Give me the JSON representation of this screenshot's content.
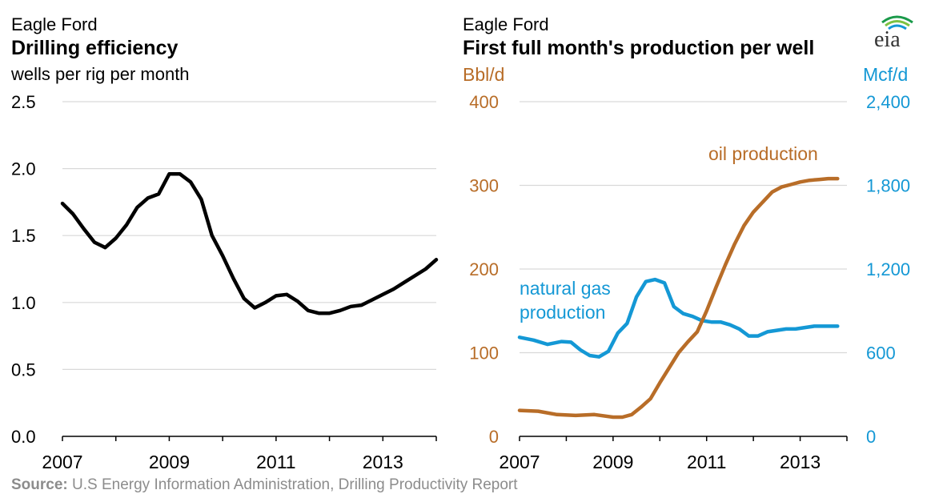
{
  "colors": {
    "black": "#000000",
    "oil": "#b86d28",
    "gas": "#1498d5",
    "grid": "#d9d9d9",
    "source": "#8c8c8c"
  },
  "left": {
    "subtitle": "Eagle Ford",
    "title": "Drilling efficiency",
    "unit": "wells per rig per month"
  },
  "right": {
    "subtitle": "Eagle Ford",
    "title": "First full month's production per well",
    "left_unit": "Bbl/d",
    "right_unit": "Mcf/d",
    "oil_label": "oil production",
    "gas_label_1": "natural gas",
    "gas_label_2": "production"
  },
  "logo": "eia",
  "source": {
    "label": "Source:",
    "text": "U.S Energy Information Administration, Drilling Productivity Report"
  },
  "chart_data": [
    {
      "type": "line",
      "title": "Drilling efficiency",
      "ylabel": "wells per rig per month",
      "ylim": [
        0,
        2.5
      ],
      "yticks": [
        "0.0",
        "0.5",
        "1.0",
        "1.5",
        "2.0",
        "2.5"
      ],
      "xlim": [
        2007,
        2014.0
      ],
      "xticks": [
        "2007",
        "2009",
        "2011",
        "2013"
      ],
      "grid": true,
      "series": [
        {
          "x": [
            2007.0,
            2007.2,
            2007.4,
            2007.6,
            2007.8,
            2008.0,
            2008.2,
            2008.4,
            2008.6,
            2008.8,
            2009.0,
            2009.2,
            2009.4,
            2009.6,
            2009.8,
            2010.0,
            2010.2,
            2010.4,
            2010.6,
            2010.8,
            2011.0,
            2011.2,
            2011.4,
            2011.6,
            2011.8,
            2012.0,
            2012.2,
            2012.4,
            2012.6,
            2012.8,
            2013.0,
            2013.2,
            2013.4,
            2013.6,
            2013.8,
            2014.0
          ],
          "values": [
            1.74,
            1.66,
            1.55,
            1.45,
            1.41,
            1.48,
            1.58,
            1.71,
            1.78,
            1.81,
            1.96,
            1.96,
            1.9,
            1.77,
            1.5,
            1.35,
            1.18,
            1.03,
            0.96,
            1.0,
            1.05,
            1.06,
            1.01,
            0.94,
            0.92,
            0.92,
            0.94,
            0.97,
            0.98,
            1.02,
            1.06,
            1.1,
            1.15,
            1.2,
            1.25,
            1.32
          ]
        }
      ]
    },
    {
      "type": "line",
      "title": "First full month's production per well",
      "ylim": [
        0,
        400
      ],
      "yticks": [
        "0",
        "100",
        "200",
        "300",
        "400"
      ],
      "y2lim": [
        0,
        2400
      ],
      "y2ticks": [
        "0",
        "600",
        "1,200",
        "1,800",
        "2,400"
      ],
      "xlim": [
        2007,
        2014.0
      ],
      "xticks": [
        "2007",
        "2009",
        "2011",
        "2013"
      ],
      "grid": true,
      "series": [
        {
          "name": "oil production",
          "axis": "left",
          "x": [
            2007.0,
            2007.4,
            2007.8,
            2008.2,
            2008.6,
            2009.0,
            2009.2,
            2009.4,
            2009.6,
            2009.8,
            2010.0,
            2010.2,
            2010.4,
            2010.6,
            2010.8,
            2011.0,
            2011.2,
            2011.4,
            2011.6,
            2011.8,
            2012.0,
            2012.2,
            2012.4,
            2012.6,
            2012.8,
            2013.0,
            2013.2,
            2013.4,
            2013.6,
            2013.8
          ],
          "values": [
            31,
            30,
            26,
            25,
            26,
            23,
            23,
            26,
            35,
            45,
            64,
            82,
            100,
            113,
            125,
            150,
            178,
            205,
            230,
            252,
            268,
            280,
            292,
            298,
            301,
            304,
            306,
            307,
            308,
            308
          ]
        },
        {
          "name": "natural gas production",
          "axis": "right",
          "x": [
            2007.0,
            2007.3,
            2007.6,
            2007.9,
            2008.1,
            2008.3,
            2008.5,
            2008.7,
            2008.9,
            2009.1,
            2009.3,
            2009.5,
            2009.7,
            2009.9,
            2010.1,
            2010.3,
            2010.5,
            2010.7,
            2010.9,
            2011.1,
            2011.3,
            2011.5,
            2011.7,
            2011.9,
            2012.1,
            2012.3,
            2012.5,
            2012.7,
            2012.9,
            2013.1,
            2013.3,
            2013.5,
            2013.8
          ],
          "values": [
            710,
            690,
            660,
            680,
            675,
            620,
            580,
            570,
            610,
            740,
            810,
            1000,
            1110,
            1125,
            1100,
            930,
            880,
            860,
            830,
            820,
            820,
            800,
            770,
            720,
            720,
            750,
            760,
            770,
            770,
            780,
            790,
            790,
            790
          ]
        }
      ]
    }
  ]
}
